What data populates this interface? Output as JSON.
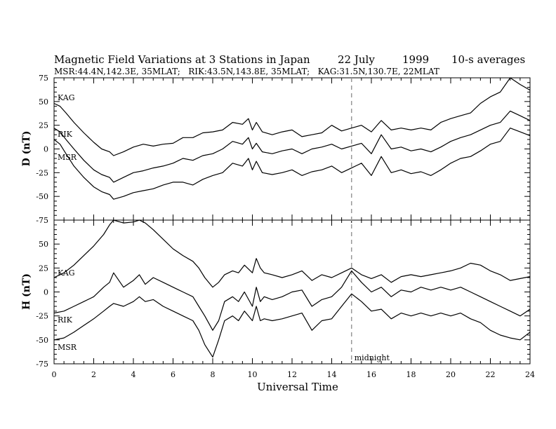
{
  "header": {
    "title_main": "Magnetic Field Variations at 3 Stations in Japan",
    "title_date": "22 July",
    "title_year": "1999",
    "title_avg": "10-s averages",
    "subtitle": "MSR:44.4N,142.3E, 35MLAT;   RIK:43.5N,143.8E, 35MLAT;   KAG:31.5N,130.7E, 22MLAT"
  },
  "chart_data": [
    {
      "type": "line",
      "panel": "top",
      "ylabel": "D (nT)",
      "ylim": [
        -75,
        75
      ],
      "yticks": [
        75,
        50,
        25,
        0,
        -25,
        -50,
        -75
      ],
      "xlim": [
        0,
        24
      ],
      "series": [
        {
          "name": "KAG",
          "x": [
            0,
            0.3,
            0.6,
            1,
            1.5,
            2,
            2.4,
            2.8,
            3,
            3.5,
            4,
            4.5,
            5,
            5.5,
            6,
            6.5,
            7,
            7.5,
            8,
            8.5,
            9,
            9.5,
            9.8,
            10,
            10.2,
            10.5,
            11,
            11.5,
            12,
            12.5,
            13,
            13.5,
            14,
            14.5,
            15,
            15.5,
            16,
            16.5,
            17,
            17.5,
            18,
            18.5,
            19,
            19.5,
            20,
            20.5,
            21,
            21.5,
            22,
            22.5,
            23,
            23.5,
            24
          ],
          "y": [
            48,
            45,
            38,
            28,
            17,
            7,
            0,
            -3,
            -7,
            -3,
            2,
            5,
            3,
            5,
            6,
            12,
            12,
            17,
            18,
            20,
            28,
            26,
            32,
            20,
            28,
            18,
            15,
            18,
            20,
            13,
            15,
            17,
            25,
            19,
            22,
            25,
            18,
            30,
            20,
            22,
            20,
            22,
            20,
            28,
            32,
            35,
            38,
            48,
            55,
            60,
            75,
            68,
            62
          ]
        },
        {
          "name": "RIK",
          "x": [
            0,
            0.3,
            0.6,
            1,
            1.5,
            2,
            2.4,
            2.8,
            3,
            3.5,
            4,
            4.5,
            5,
            5.5,
            6,
            6.5,
            7,
            7.5,
            8,
            8.5,
            9,
            9.5,
            9.8,
            10,
            10.2,
            10.5,
            11,
            11.5,
            12,
            12.5,
            13,
            13.5,
            14,
            14.5,
            15,
            15.5,
            16,
            16.5,
            17,
            17.5,
            18,
            18.5,
            19,
            19.5,
            20,
            20.5,
            21,
            21.5,
            22,
            22.5,
            23,
            23.5,
            24
          ],
          "y": [
            22,
            18,
            10,
            0,
            -12,
            -22,
            -27,
            -30,
            -35,
            -30,
            -25,
            -23,
            -20,
            -18,
            -15,
            -10,
            -12,
            -7,
            -5,
            0,
            8,
            5,
            12,
            0,
            6,
            -3,
            -5,
            -2,
            0,
            -5,
            0,
            2,
            5,
            0,
            3,
            6,
            -5,
            15,
            0,
            2,
            -2,
            0,
            -3,
            2,
            8,
            12,
            15,
            20,
            25,
            28,
            40,
            35,
            30
          ]
        },
        {
          "name": "MSR",
          "x": [
            0,
            0.3,
            0.6,
            1,
            1.5,
            2,
            2.4,
            2.8,
            3,
            3.5,
            4,
            4.5,
            5,
            5.5,
            6,
            6.5,
            7,
            7.5,
            8,
            8.5,
            9,
            9.5,
            9.8,
            10,
            10.2,
            10.5,
            11,
            11.5,
            12,
            12.5,
            13,
            13.5,
            14,
            14.5,
            15,
            15.5,
            16,
            16.5,
            17,
            17.5,
            18,
            18.5,
            19,
            19.5,
            20,
            20.5,
            21,
            21.5,
            22,
            22.5,
            23,
            23.5,
            24
          ],
          "y": [
            10,
            5,
            -5,
            -18,
            -30,
            -40,
            -45,
            -48,
            -53,
            -50,
            -46,
            -44,
            -42,
            -38,
            -35,
            -35,
            -38,
            -32,
            -28,
            -25,
            -15,
            -18,
            -10,
            -22,
            -13,
            -25,
            -27,
            -25,
            -22,
            -28,
            -24,
            -22,
            -18,
            -25,
            -20,
            -15,
            -28,
            -8,
            -25,
            -22,
            -26,
            -24,
            -28,
            -22,
            -15,
            -10,
            -8,
            -2,
            5,
            8,
            22,
            18,
            14
          ]
        }
      ],
      "series_labels": [
        "KAG",
        "RIK",
        "MSR"
      ]
    },
    {
      "type": "line",
      "panel": "bottom",
      "ylabel": "H (nT)",
      "ylim": [
        -75,
        75
      ],
      "yticks": [
        75,
        50,
        25,
        0,
        -25,
        -50,
        -75
      ],
      "xlim": [
        0,
        24
      ],
      "xticks": [
        0,
        2,
        4,
        6,
        8,
        10,
        12,
        14,
        16,
        18,
        20,
        22,
        24
      ],
      "xlabel": "Universal Time",
      "series": [
        {
          "name": "KAG",
          "x": [
            0,
            0.5,
            1,
            1.5,
            2,
            2.5,
            2.8,
            3,
            3.5,
            4,
            4.3,
            4.6,
            5,
            5.5,
            6,
            6.5,
            7,
            7.3,
            7.6,
            8,
            8.3,
            8.6,
            9,
            9.3,
            9.6,
            10,
            10.2,
            10.4,
            10.6,
            11,
            11.5,
            12,
            12.5,
            13,
            13.5,
            14,
            14.5,
            15,
            15.5,
            16,
            16.5,
            17,
            17.5,
            18,
            18.5,
            19,
            19.5,
            20,
            20.5,
            21,
            21.5,
            22,
            22.5,
            23,
            23.5,
            24
          ],
          "y": [
            15,
            20,
            28,
            38,
            48,
            60,
            70,
            75,
            72,
            73,
            75,
            72,
            65,
            55,
            45,
            38,
            32,
            25,
            15,
            5,
            10,
            18,
            22,
            20,
            28,
            20,
            35,
            25,
            20,
            18,
            15,
            18,
            22,
            12,
            18,
            15,
            20,
            25,
            18,
            14,
            18,
            10,
            16,
            18,
            16,
            18,
            20,
            22,
            25,
            30,
            28,
            22,
            18,
            12,
            14,
            16
          ]
        },
        {
          "name": "RIK",
          "x": [
            0,
            0.5,
            1,
            1.5,
            2,
            2.5,
            2.8,
            3,
            3.5,
            4,
            4.3,
            4.6,
            5,
            5.5,
            6,
            6.5,
            7,
            7.3,
            7.6,
            8,
            8.3,
            8.6,
            9,
            9.3,
            9.6,
            10,
            10.2,
            10.4,
            10.6,
            11,
            11.5,
            12,
            12.5,
            13,
            13.5,
            14,
            14.5,
            15,
            15.5,
            16,
            16.5,
            17,
            17.5,
            18,
            18.5,
            19,
            19.5,
            20,
            20.5,
            21,
            21.5,
            22,
            22.5,
            23,
            23.5,
            24
          ],
          "y": [
            -22,
            -20,
            -15,
            -10,
            -5,
            5,
            10,
            20,
            5,
            12,
            18,
            8,
            15,
            10,
            5,
            0,
            -5,
            -15,
            -25,
            -40,
            -30,
            -10,
            -5,
            -10,
            0,
            -15,
            5,
            -10,
            -5,
            -8,
            -5,
            0,
            2,
            -15,
            -8,
            -5,
            5,
            22,
            10,
            0,
            5,
            -5,
            2,
            0,
            5,
            2,
            5,
            2,
            5,
            0,
            -5,
            -10,
            -15,
            -20,
            -25,
            -18
          ]
        },
        {
          "name": "MSR",
          "x": [
            0,
            0.5,
            1,
            1.5,
            2,
            2.5,
            2.8,
            3,
            3.5,
            4,
            4.3,
            4.6,
            5,
            5.5,
            6,
            6.5,
            7,
            7.3,
            7.6,
            8,
            8.3,
            8.6,
            9,
            9.3,
            9.6,
            10,
            10.2,
            10.4,
            10.6,
            11,
            11.5,
            12,
            12.5,
            13,
            13.5,
            14,
            14.5,
            15,
            15.5,
            16,
            16.5,
            17,
            17.5,
            18,
            18.5,
            19,
            19.5,
            20,
            20.5,
            21,
            21.5,
            22,
            22.5,
            23,
            23.5,
            24
          ],
          "y": [
            -50,
            -48,
            -42,
            -35,
            -28,
            -20,
            -15,
            -12,
            -15,
            -10,
            -5,
            -10,
            -8,
            -15,
            -20,
            -25,
            -30,
            -40,
            -55,
            -68,
            -50,
            -30,
            -25,
            -30,
            -20,
            -30,
            -15,
            -30,
            -28,
            -30,
            -28,
            -25,
            -22,
            -40,
            -30,
            -28,
            -15,
            -2,
            -10,
            -20,
            -18,
            -28,
            -22,
            -25,
            -22,
            -25,
            -22,
            -25,
            -22,
            -28,
            -32,
            -40,
            -45,
            -48,
            -50,
            -42
          ]
        }
      ],
      "series_labels": [
        "KAG",
        "RIK",
        "MSR"
      ]
    }
  ],
  "annotations": {
    "midnight_x": 15,
    "midnight_label": "midnight"
  }
}
